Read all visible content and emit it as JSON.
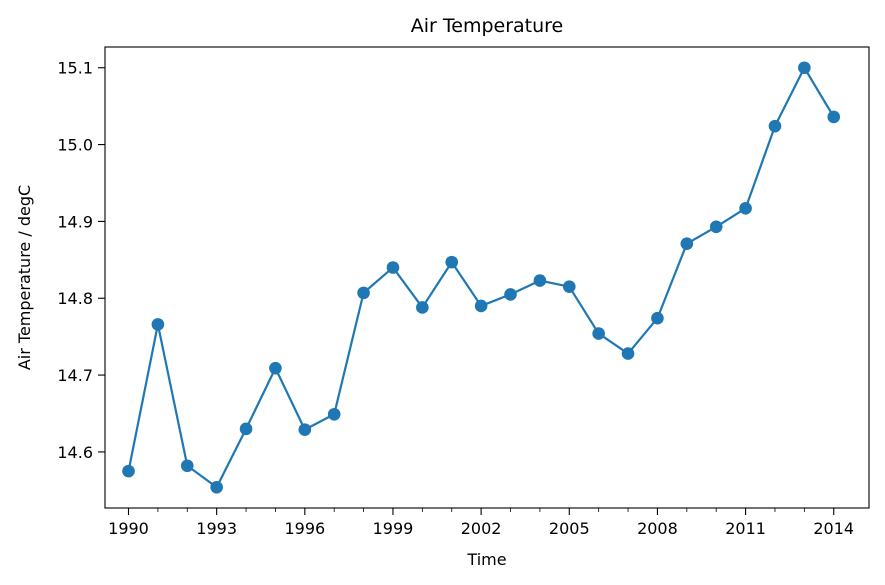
{
  "chart_data": {
    "type": "line",
    "title": "Air Temperature",
    "xlabel": "Time",
    "ylabel": "Air Temperature / degC",
    "xlim": [
      1989.2,
      2015.2
    ],
    "ylim": [
      14.527,
      15.127
    ],
    "x_ticks": [
      1990,
      1993,
      1996,
      1999,
      2002,
      2005,
      2008,
      2011,
      2014
    ],
    "x_tick_labels": [
      "1990",
      "1993",
      "1996",
      "1999",
      "2002",
      "2005",
      "2008",
      "2011",
      "2014"
    ],
    "x_minor_ticks": [
      1991,
      1992,
      1994,
      1995,
      1997,
      1998,
      2000,
      2001,
      2003,
      2004,
      2006,
      2007,
      2009,
      2010,
      2012,
      2013
    ],
    "y_ticks": [
      14.6,
      14.7,
      14.8,
      14.9,
      15.0,
      15.1
    ],
    "y_tick_labels": [
      "14.6",
      "14.7",
      "14.8",
      "14.9",
      "15.0",
      "15.1"
    ],
    "grid": false,
    "color": "#1f77b4",
    "marker": "circle",
    "x": [
      1990,
      1991,
      1992,
      1993,
      1994,
      1995,
      1996,
      1997,
      1998,
      1999,
      2000,
      2001,
      2002,
      2003,
      2004,
      2005,
      2006,
      2007,
      2008,
      2009,
      2010,
      2011,
      2012,
      2013,
      2014
    ],
    "y": [
      14.575,
      14.766,
      14.582,
      14.554,
      14.63,
      14.709,
      14.629,
      14.649,
      14.807,
      14.84,
      14.788,
      14.847,
      14.79,
      14.805,
      14.823,
      14.815,
      14.754,
      14.728,
      14.774,
      14.871,
      14.893,
      14.917,
      15.024,
      15.1,
      15.036
    ]
  }
}
